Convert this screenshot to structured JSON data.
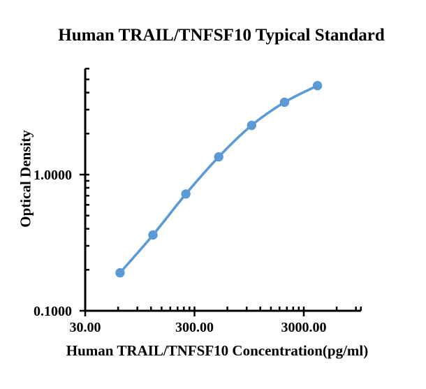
{
  "chart_data": {
    "type": "line",
    "title": "Human TRAIL/TNFSF10 Typical Standard",
    "xlabel": "Human TRAIL/TNFSF10 Concentration(pg/ml)",
    "ylabel": "Optical Density",
    "x_scale": "log",
    "y_scale": "log",
    "xlim": [
      30,
      10000
    ],
    "ylim": [
      0.1,
      6
    ],
    "x_major_ticks": [
      30,
      300,
      3000
    ],
    "x_tick_labels": [
      "30.00",
      "300.00",
      "3000.00"
    ],
    "y_major_ticks": [
      0.1,
      1
    ],
    "y_tick_labels": [
      "0.1000",
      "1.0000"
    ],
    "grid": false,
    "legend": "none",
    "series": [
      {
        "x": [
          62.5,
          125,
          250,
          500,
          1000,
          2000,
          4000
        ],
        "y": [
          0.19,
          0.36,
          0.72,
          1.35,
          2.3,
          3.4,
          4.5
        ],
        "color": "#5b9bd5",
        "marker": "circle",
        "marker_radius": 6.7,
        "line_width": 3.6
      }
    ],
    "axis_color": "#000000"
  }
}
